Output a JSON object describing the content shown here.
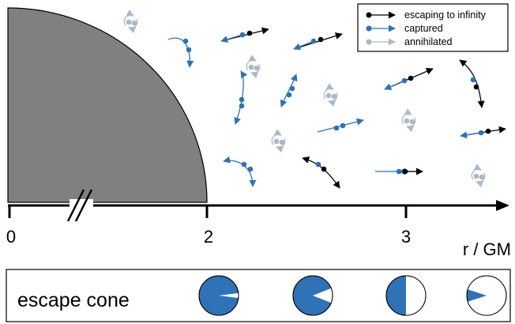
{
  "colors": {
    "horizon_fill": "#808080",
    "escaping": "#000000",
    "captured": "#2f72b5",
    "annihilated": "#a9b9cb",
    "axis": "#000000"
  },
  "legend": {
    "items": [
      {
        "label": "escaping to infinity",
        "type": "escaping"
      },
      {
        "label": "captured",
        "type": "captured"
      },
      {
        "label": "annihilated",
        "type": "annihilated"
      }
    ]
  },
  "axis": {
    "tick_labels": [
      "0",
      "2",
      "3"
    ],
    "label": "r / GM",
    "break_marker": true
  },
  "escape_cone": {
    "label": "escape cone",
    "escape_fractions": [
      0.04,
      0.12,
      0.5,
      0.9
    ]
  },
  "particle_pairs": [
    {
      "type": "annihilated"
    },
    {
      "type": "captured"
    },
    {
      "type": "captured"
    },
    {
      "type": "escaping"
    },
    {
      "type": "escaping"
    },
    {
      "type": "annihilated"
    },
    {
      "type": "captured"
    },
    {
      "type": "captured"
    },
    {
      "type": "annihilated"
    },
    {
      "type": "escaping"
    },
    {
      "type": "escaping"
    },
    {
      "type": "annihilated"
    },
    {
      "type": "captured"
    },
    {
      "type": "annihilated"
    },
    {
      "type": "escaping"
    },
    {
      "type": "captured"
    },
    {
      "type": "escaping"
    },
    {
      "type": "escaping"
    },
    {
      "type": "annihilated"
    },
    {
      "type": "escaping"
    }
  ]
}
